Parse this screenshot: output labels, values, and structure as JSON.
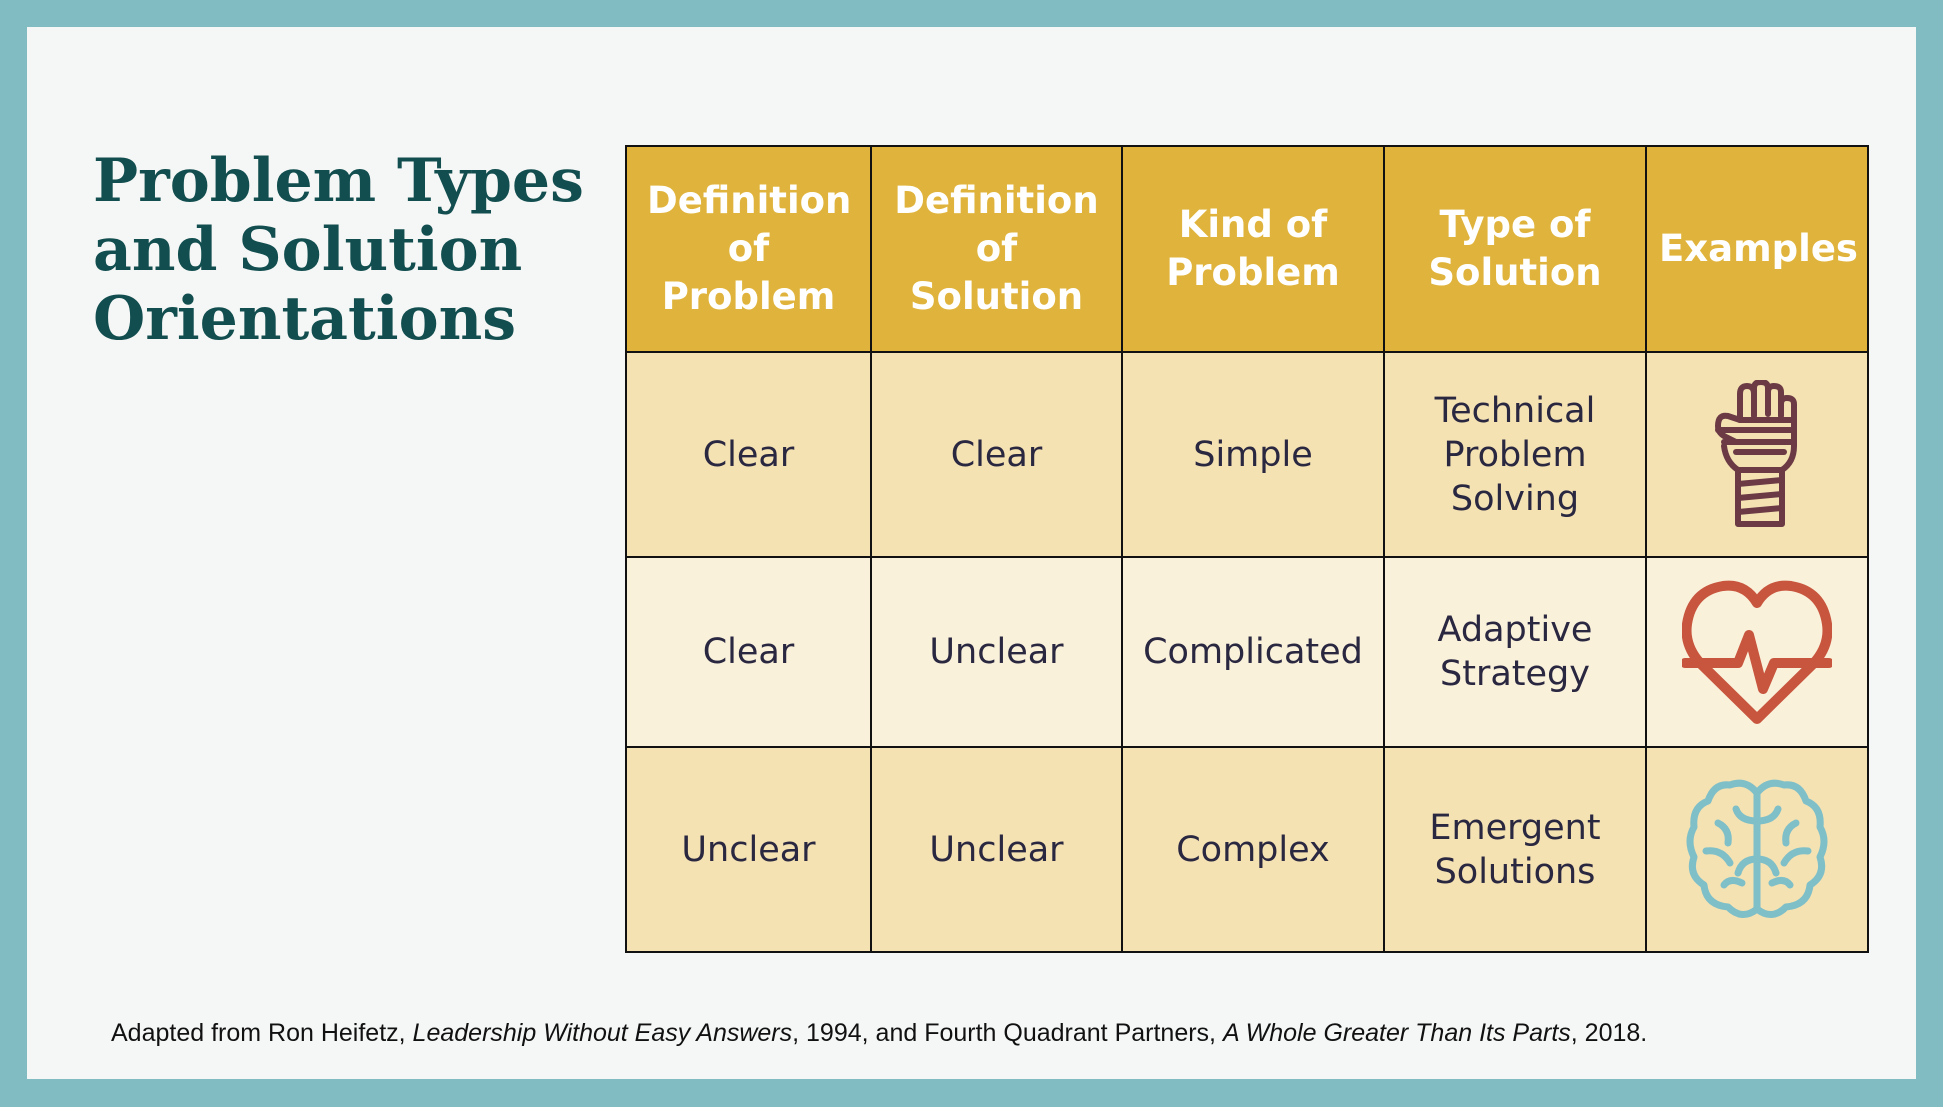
{
  "title": {
    "line1": "Problem Types",
    "line2": "and Solution",
    "line3": "Orientations"
  },
  "table": {
    "headers": [
      "Definition of Problem",
      "Definition of Solution",
      "Kind of Problem",
      "Type of Solution",
      "Examples"
    ],
    "rows": [
      {
        "definition_of_problem": "Clear",
        "definition_of_solution": "Clear",
        "kind_of_problem": "Simple",
        "type_of_solution": "Technical Problem Solving",
        "example_icon": "bandaged-hand-icon"
      },
      {
        "definition_of_problem": "Clear",
        "definition_of_solution": "Unclear",
        "kind_of_problem": "Complicated",
        "type_of_solution": "Adaptive Strategy",
        "example_icon": "heartbeat-icon"
      },
      {
        "definition_of_problem": "Unclear",
        "definition_of_solution": "Unclear",
        "kind_of_problem": "Complex",
        "type_of_solution": "Emergent Solutions",
        "example_icon": "brain-icon"
      }
    ]
  },
  "footnote": {
    "part1": "Adapted from Ron Heifetz, ",
    "book1": "Leadership Without Easy Answers",
    "part2": ", 1994, and Fourth Quadrant Partners, ",
    "book2": "A Whole Greater Than Its Parts",
    "part3": ", 2018."
  },
  "colors": {
    "frame": "#82bcc3",
    "background": "#f5f7f6",
    "title": "#124e4f",
    "header_fill": "#e0b43c",
    "row_dark": "#f4e2b3",
    "row_light": "#faf1db",
    "hand_icon": "#6b3a44",
    "heart_icon": "#c8553d",
    "brain_icon": "#7fbfc8"
  }
}
